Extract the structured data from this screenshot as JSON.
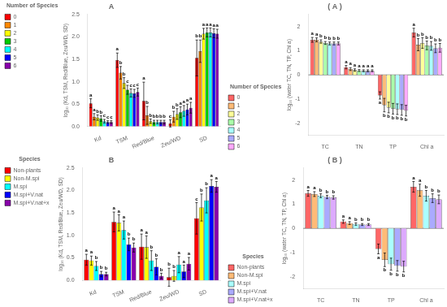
{
  "chart_data": [
    {
      "type": "bar",
      "title": "A",
      "categories": [
        "Kd",
        "TSM",
        "Red/Blue",
        "Zeu/WD",
        "SD"
      ],
      "ylabel": "log₁₀ (Kd, TSM, Red/Blue, Zeu/WD, SD)",
      "ylim": [
        0,
        2.5
      ],
      "yticks": [
        {
          "value": 0,
          "label": "0.0"
        },
        0.5,
        {
          "value": 1,
          "label": "1.0"
        },
        1.5,
        {
          "value": 2,
          "label": "2.0"
        },
        2.5
      ],
      "grid": false,
      "legend": "upper left",
      "legend_title": "Number of Species",
      "series": [
        {
          "name": "0",
          "color": "#FF0000",
          "values": [
            0.52,
            1.48,
            0.57,
            0.07,
            1.53
          ],
          "errors": [
            0.1,
            0.16,
            0.42,
            0.08,
            0.4
          ],
          "letters": [
            "a",
            "a",
            "a",
            "c",
            "b"
          ]
        },
        {
          "name": "1",
          "color": "#FF8800",
          "values": [
            0.22,
            1.2,
            0.25,
            0.22,
            1.68
          ],
          "errors": [
            0.07,
            0.14,
            0.2,
            0.12,
            0.25
          ],
          "letters": [
            "a",
            "b",
            "b",
            "b",
            "b"
          ]
        },
        {
          "name": "2",
          "color": "#FFFF00",
          "values": [
            0.2,
            0.97,
            0.12,
            0.28,
            2.07
          ],
          "errors": [
            0.06,
            0.12,
            0.05,
            0.12,
            0.12
          ],
          "letters": [
            "b",
            "b",
            "b",
            "b",
            "a"
          ]
        },
        {
          "name": "3",
          "color": "#00CC00",
          "values": [
            0.18,
            0.82,
            0.1,
            0.32,
            2.1
          ],
          "errors": [
            0.06,
            0.1,
            0.04,
            0.12,
            0.1
          ],
          "letters": [
            "b",
            "c",
            "b",
            "a",
            "a"
          ]
        },
        {
          "name": "4",
          "color": "#00FFFF",
          "values": [
            0.12,
            0.75,
            0.1,
            0.35,
            2.1
          ],
          "errors": [
            0.04,
            0.09,
            0.04,
            0.12,
            0.1
          ],
          "letters": [
            "c",
            "c",
            "b",
            "a",
            "a"
          ]
        },
        {
          "name": "5",
          "color": "#0000FF",
          "values": [
            0.1,
            0.74,
            0.1,
            0.38,
            2.08
          ],
          "errors": [
            0.03,
            0.09,
            0.04,
            0.12,
            0.1
          ],
          "letters": [
            "c",
            "c",
            "b",
            "a",
            "a"
          ]
        },
        {
          "name": "6",
          "color": "#8800AA",
          "values": [
            0.1,
            0.77,
            0.1,
            0.42,
            2.07
          ],
          "errors": [
            0.03,
            0.09,
            0.04,
            0.12,
            0.1
          ],
          "letters": [
            "c",
            "c",
            "b",
            "a",
            "a"
          ]
        }
      ]
    },
    {
      "type": "bar",
      "title": "( A )",
      "categories": [
        "TC",
        "TN",
        "TP",
        "Chl a"
      ],
      "ylabel": "log₁₀ (water TC, TN, TP, Chl a)",
      "ylim": [
        -2.5,
        2.5
      ],
      "yticks": [
        -2,
        -1,
        0,
        1,
        2
      ],
      "grid": false,
      "legend": "lower left",
      "legend_title": "Number of Species",
      "series": [
        {
          "name": "0",
          "color": "#FF6666",
          "values": [
            1.45,
            0.32,
            -0.85,
            1.75
          ],
          "errors": [
            0.1,
            0.07,
            0.15,
            0.18
          ],
          "letters": [
            "a",
            "a",
            "a",
            "a"
          ]
        },
        {
          "name": "1",
          "color": "#FFBB77",
          "values": [
            1.45,
            0.24,
            -1.25,
            1.25
          ],
          "errors": [
            0.08,
            0.06,
            0.28,
            0.25
          ],
          "letters": [
            "a",
            "a",
            "b",
            "b"
          ]
        },
        {
          "name": "2",
          "color": "#FFFF99",
          "values": [
            1.38,
            0.2,
            -1.35,
            1.32
          ],
          "errors": [
            0.07,
            0.05,
            0.22,
            0.22
          ],
          "letters": [
            "b",
            "a",
            "b",
            "b"
          ]
        },
        {
          "name": "3",
          "color": "#AAFFAA",
          "values": [
            1.32,
            0.18,
            -1.4,
            1.22
          ],
          "errors": [
            0.06,
            0.04,
            0.22,
            0.18
          ],
          "letters": [
            "b",
            "a",
            "b",
            "b"
          ]
        },
        {
          "name": "4",
          "color": "#AAFFFF",
          "values": [
            1.3,
            0.17,
            -1.42,
            1.2
          ],
          "errors": [
            0.06,
            0.04,
            0.22,
            0.18
          ],
          "letters": [
            "b",
            "a",
            "b",
            "b"
          ]
        },
        {
          "name": "5",
          "color": "#AAAAFF",
          "values": [
            1.3,
            0.17,
            -1.45,
            1.1
          ],
          "errors": [
            0.06,
            0.04,
            0.22,
            0.18
          ],
          "letters": [
            "b",
            "a",
            "b",
            "b"
          ]
        },
        {
          "name": "6",
          "color": "#FFAAFF",
          "values": [
            1.3,
            0.17,
            -1.48,
            1.12
          ],
          "errors": [
            0.06,
            0.04,
            0.22,
            0.18
          ],
          "letters": [
            "b",
            "a",
            "b",
            "b"
          ]
        }
      ]
    },
    {
      "type": "bar",
      "title": "B",
      "categories": [
        "Kd",
        "TSM",
        "Red/Blue",
        "Zeu/WD",
        "SD"
      ],
      "ylabel": "log₁₀ (Kd, TSM, Red/Blue, Zeu/WD, SD)",
      "ylim": [
        0,
        2.5
      ],
      "yticks": [
        {
          "value": 0,
          "label": "0.0"
        },
        0.5,
        {
          "value": 1,
          "label": "1.0"
        },
        1.5,
        {
          "value": 2,
          "label": "2.0"
        },
        2.5
      ],
      "grid": false,
      "legend": "upper left",
      "legend_title": "Species",
      "series": [
        {
          "name": "Non-plants",
          "color": "#FF0000",
          "values": [
            0.46,
            1.3,
            0.75,
            0.07,
            1.38
          ],
          "errors": [
            0.12,
            0.22,
            0.28,
            0.2,
            0.35
          ],
          "letters": [
            "a",
            "a",
            "a",
            "b",
            "c"
          ]
        },
        {
          "name": "Non-M.spi",
          "color": "#FFFF00",
          "values": [
            0.44,
            1.28,
            0.74,
            0.1,
            1.62
          ],
          "errors": [
            0.1,
            0.18,
            0.25,
            0.12,
            0.3
          ],
          "letters": [
            "a",
            "a",
            "a",
            "b",
            "b"
          ]
        },
        {
          "name": "M.spi",
          "color": "#00FFFF",
          "values": [
            0.32,
            1.12,
            0.44,
            0.35,
            1.78
          ],
          "errors": [
            0.1,
            0.2,
            0.22,
            0.18,
            0.28
          ],
          "letters": [
            "b",
            "a",
            "b",
            "a",
            "b"
          ]
        },
        {
          "name": "M.spi+V.nat",
          "color": "#0000FF",
          "values": [
            0.14,
            0.8,
            0.3,
            0.2,
            2.1
          ],
          "errors": [
            0.06,
            0.14,
            0.18,
            0.14,
            0.14
          ],
          "letters": [
            "b",
            "b",
            "b",
            "a",
            "a"
          ]
        },
        {
          "name": "M.spi+V.nat+x",
          "color": "#8800AA",
          "values": [
            0.14,
            0.73,
            0.1,
            0.37,
            2.08
          ],
          "errors": [
            0.04,
            0.1,
            0.06,
            0.14,
            0.12
          ],
          "letters": [
            "b",
            "b",
            "b",
            "a",
            "a"
          ]
        }
      ]
    },
    {
      "type": "bar",
      "title": "( B )",
      "categories": [
        "TC",
        "TN",
        "TP",
        "Chl a"
      ],
      "ylabel": "log₁₀ (water TC, TN, TP, Chl a)",
      "ylim": [
        -2.5,
        2.5
      ],
      "yticks": [
        -2,
        -1,
        0,
        1,
        2
      ],
      "grid": false,
      "legend": "lower left",
      "legend_title": "Species",
      "series": [
        {
          "name": "Non-plants",
          "color": "#FF6666",
          "values": [
            1.45,
            0.28,
            -0.85,
            1.72
          ],
          "errors": [
            0.12,
            0.07,
            0.2,
            0.22
          ],
          "letters": [
            "a",
            "a",
            "a",
            "a"
          ]
        },
        {
          "name": "Non-M.spi",
          "color": "#FFBB77",
          "values": [
            1.42,
            0.22,
            -1.3,
            1.58
          ],
          "errors": [
            0.1,
            0.06,
            0.28,
            0.25
          ],
          "letters": [
            "a",
            "a",
            "b",
            "a"
          ]
        },
        {
          "name": "M.spi",
          "color": "#AAFFFF",
          "values": [
            1.35,
            0.18,
            -1.48,
            1.35
          ],
          "errors": [
            0.08,
            0.05,
            0.25,
            0.22
          ],
          "letters": [
            "b",
            "b",
            "b",
            "b"
          ]
        },
        {
          "name": "M.spi+V.nat",
          "color": "#AAAAFF",
          "values": [
            1.3,
            0.16,
            -1.55,
            1.25
          ],
          "errors": [
            0.07,
            0.04,
            0.22,
            0.18
          ],
          "letters": [
            "b",
            "b",
            "b",
            "b"
          ]
        },
        {
          "name": "M.spi+V.nat+x",
          "color": "#DDAAFF",
          "values": [
            1.28,
            0.16,
            -1.58,
            1.2
          ],
          "errors": [
            0.07,
            0.04,
            0.22,
            0.18
          ],
          "letters": [
            "b",
            "b",
            "b",
            "b"
          ]
        }
      ]
    }
  ]
}
